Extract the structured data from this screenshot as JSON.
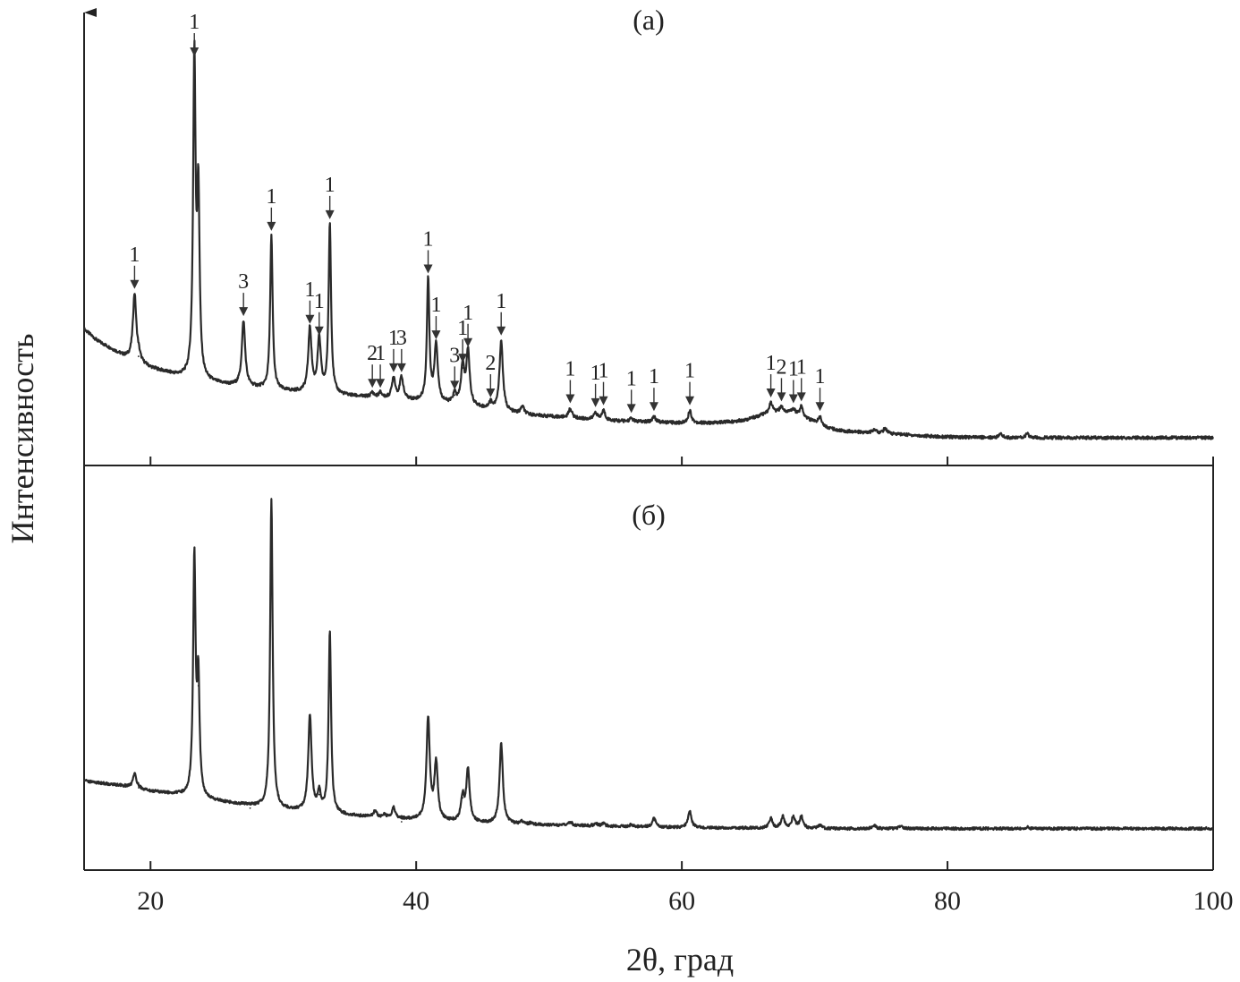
{
  "chart_data": {
    "type": "line",
    "xlabel": "2θ, град",
    "ylabel": "Интенсивность",
    "xlim": [
      15,
      100
    ],
    "xticks": [
      20,
      40,
      60,
      80,
      100
    ],
    "grid": false,
    "panels": [
      {
        "label": "(а)",
        "ylim": [
          0,
          100
        ],
        "baseline": [
          [
            15,
            31
          ],
          [
            16,
            28
          ],
          [
            17,
            26
          ],
          [
            18,
            24
          ],
          [
            20,
            21
          ],
          [
            22,
            19
          ],
          [
            24,
            17.5
          ],
          [
            26,
            16.5
          ],
          [
            28,
            15.8
          ],
          [
            30,
            15
          ],
          [
            32,
            14.5
          ],
          [
            34,
            14
          ],
          [
            36,
            13.5
          ],
          [
            38,
            13
          ],
          [
            40,
            12.5
          ],
          [
            42,
            11.8
          ],
          [
            44,
            11
          ],
          [
            46,
            10
          ],
          [
            48,
            9
          ],
          [
            50,
            8.5
          ],
          [
            52,
            8
          ],
          [
            54,
            7.5
          ],
          [
            56,
            7.2
          ],
          [
            58,
            7
          ],
          [
            60,
            6.8
          ],
          [
            62,
            6.8
          ],
          [
            64,
            7.2
          ],
          [
            65,
            7.8
          ],
          [
            66,
            8.8
          ],
          [
            67,
            9.5
          ],
          [
            68,
            9.5
          ],
          [
            69,
            8.5
          ],
          [
            70,
            7
          ],
          [
            71,
            5.5
          ],
          [
            72,
            4.8
          ],
          [
            74,
            4.3
          ],
          [
            76,
            4
          ],
          [
            78,
            3.5
          ],
          [
            80,
            3.2
          ],
          [
            85,
            3
          ],
          [
            90,
            3
          ],
          [
            95,
            3
          ],
          [
            100,
            3
          ]
        ],
        "peaks": [
          {
            "x": 18.8,
            "y": 40,
            "label": "1"
          },
          {
            "x": 19.1,
            "y": 24
          },
          {
            "x": 23.3,
            "y": 100,
            "label": "1"
          },
          {
            "x": 23.6,
            "y": 64
          },
          {
            "x": 27.0,
            "y": 33,
            "label": "3"
          },
          {
            "x": 29.1,
            "y": 55,
            "label": "1"
          },
          {
            "x": 32.0,
            "y": 31,
            "label": "1"
          },
          {
            "x": 32.7,
            "y": 28,
            "label": "1"
          },
          {
            "x": 33.5,
            "y": 58,
            "label": "1"
          },
          {
            "x": 36.7,
            "y": 14.5,
            "label": "2"
          },
          {
            "x": 37.3,
            "y": 14.5,
            "label": "1"
          },
          {
            "x": 38.3,
            "y": 18.5,
            "label": "1"
          },
          {
            "x": 38.9,
            "y": 18.5,
            "label": "3"
          },
          {
            "x": 40.9,
            "y": 44,
            "label": "1"
          },
          {
            "x": 41.5,
            "y": 27,
            "label": "1"
          },
          {
            "x": 42.9,
            "y": 14,
            "label": "3"
          },
          {
            "x": 43.5,
            "y": 21,
            "label": "1"
          },
          {
            "x": 43.9,
            "y": 25,
            "label": "1"
          },
          {
            "x": 45.6,
            "y": 12,
            "label": "2"
          },
          {
            "x": 46.4,
            "y": 28,
            "label": "1"
          },
          {
            "x": 48.0,
            "y": 11
          },
          {
            "x": 51.6,
            "y": 10.5,
            "label": "1"
          },
          {
            "x": 53.5,
            "y": 9.5,
            "label": "1"
          },
          {
            "x": 54.1,
            "y": 10,
            "label": "1"
          },
          {
            "x": 56.2,
            "y": 8,
            "label": "1"
          },
          {
            "x": 57.9,
            "y": 8.5,
            "label": "1"
          },
          {
            "x": 60.6,
            "y": 10,
            "label": "1"
          },
          {
            "x": 66.7,
            "y": 12,
            "label": "1"
          },
          {
            "x": 67.5,
            "y": 11,
            "label": "2"
          },
          {
            "x": 68.4,
            "y": 10.5,
            "label": "1"
          },
          {
            "x": 69.0,
            "y": 11,
            "label": "1"
          },
          {
            "x": 70.4,
            "y": 8.5,
            "label": "1"
          },
          {
            "x": 74.5,
            "y": 5.2
          },
          {
            "x": 75.3,
            "y": 5.4
          },
          {
            "x": 84.0,
            "y": 4
          },
          {
            "x": 86.0,
            "y": 4
          }
        ]
      },
      {
        "label": "(б)",
        "ylim": [
          0,
          100
        ],
        "baseline": [
          [
            15,
            17
          ],
          [
            18,
            15.5
          ],
          [
            20,
            14
          ],
          [
            22,
            13
          ],
          [
            24,
            11.5
          ],
          [
            26,
            10.5
          ],
          [
            28,
            9.5
          ],
          [
            30,
            8.5
          ],
          [
            33,
            7.5
          ],
          [
            36,
            6.5
          ],
          [
            40,
            5.5
          ],
          [
            45,
            4.5
          ],
          [
            50,
            4
          ],
          [
            60,
            3.3
          ],
          [
            70,
            3
          ],
          [
            80,
            3
          ],
          [
            90,
            3
          ],
          [
            100,
            3
          ]
        ],
        "peaks": [
          {
            "x": 18.8,
            "y": 19
          },
          {
            "x": 19.1,
            "y": 15
          },
          {
            "x": 23.3,
            "y": 82
          },
          {
            "x": 23.6,
            "y": 45
          },
          {
            "x": 27.5,
            "y": 9
          },
          {
            "x": 29.1,
            "y": 100
          },
          {
            "x": 32.0,
            "y": 36
          },
          {
            "x": 32.7,
            "y": 13
          },
          {
            "x": 33.5,
            "y": 61
          },
          {
            "x": 36.9,
            "y": 8
          },
          {
            "x": 37.6,
            "y": 7
          },
          {
            "x": 38.3,
            "y": 9
          },
          {
            "x": 38.9,
            "y": 5
          },
          {
            "x": 40.9,
            "y": 35
          },
          {
            "x": 41.5,
            "y": 22
          },
          {
            "x": 43.5,
            "y": 12
          },
          {
            "x": 43.9,
            "y": 20
          },
          {
            "x": 46.4,
            "y": 28
          },
          {
            "x": 48.0,
            "y": 5
          },
          {
            "x": 48.6,
            "y": 4.5
          },
          {
            "x": 51.6,
            "y": 5
          },
          {
            "x": 53.5,
            "y": 4.5
          },
          {
            "x": 54.1,
            "y": 4.5
          },
          {
            "x": 56.2,
            "y": 4.2
          },
          {
            "x": 57.9,
            "y": 6
          },
          {
            "x": 60.6,
            "y": 8
          },
          {
            "x": 66.7,
            "y": 6
          },
          {
            "x": 67.6,
            "y": 6.5
          },
          {
            "x": 68.4,
            "y": 6.5
          },
          {
            "x": 69.0,
            "y": 6.5
          },
          {
            "x": 70.4,
            "y": 4
          },
          {
            "x": 74.5,
            "y": 3.8
          },
          {
            "x": 76.5,
            "y": 3.8
          },
          {
            "x": 86.0,
            "y": 3.5
          }
        ]
      }
    ]
  }
}
